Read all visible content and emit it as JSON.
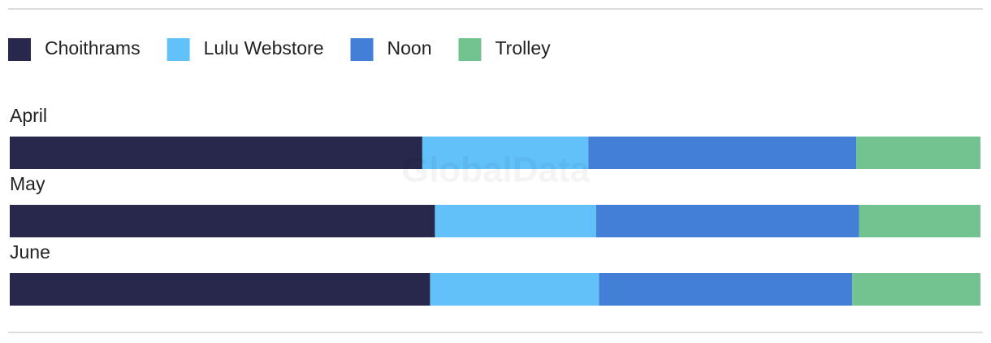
{
  "chart_data": {
    "type": "stacked-bar-horizontal",
    "watermark": "GlobalData",
    "categories": [
      "April",
      "May",
      "June"
    ],
    "series": [
      {
        "name": "Choithrams",
        "color": "#27284c",
        "values": [
          42.5,
          43.8,
          43.3
        ]
      },
      {
        "name": "Lulu Webstore",
        "color": "#63c1f9",
        "values": [
          17.1,
          16.6,
          17.4
        ]
      },
      {
        "name": "Noon",
        "color": "#437fd6",
        "values": [
          27.6,
          27.1,
          26.1
        ]
      },
      {
        "name": "Trolley",
        "color": "#72c38f",
        "values": [
          12.8,
          12.5,
          13.2
        ]
      }
    ]
  }
}
